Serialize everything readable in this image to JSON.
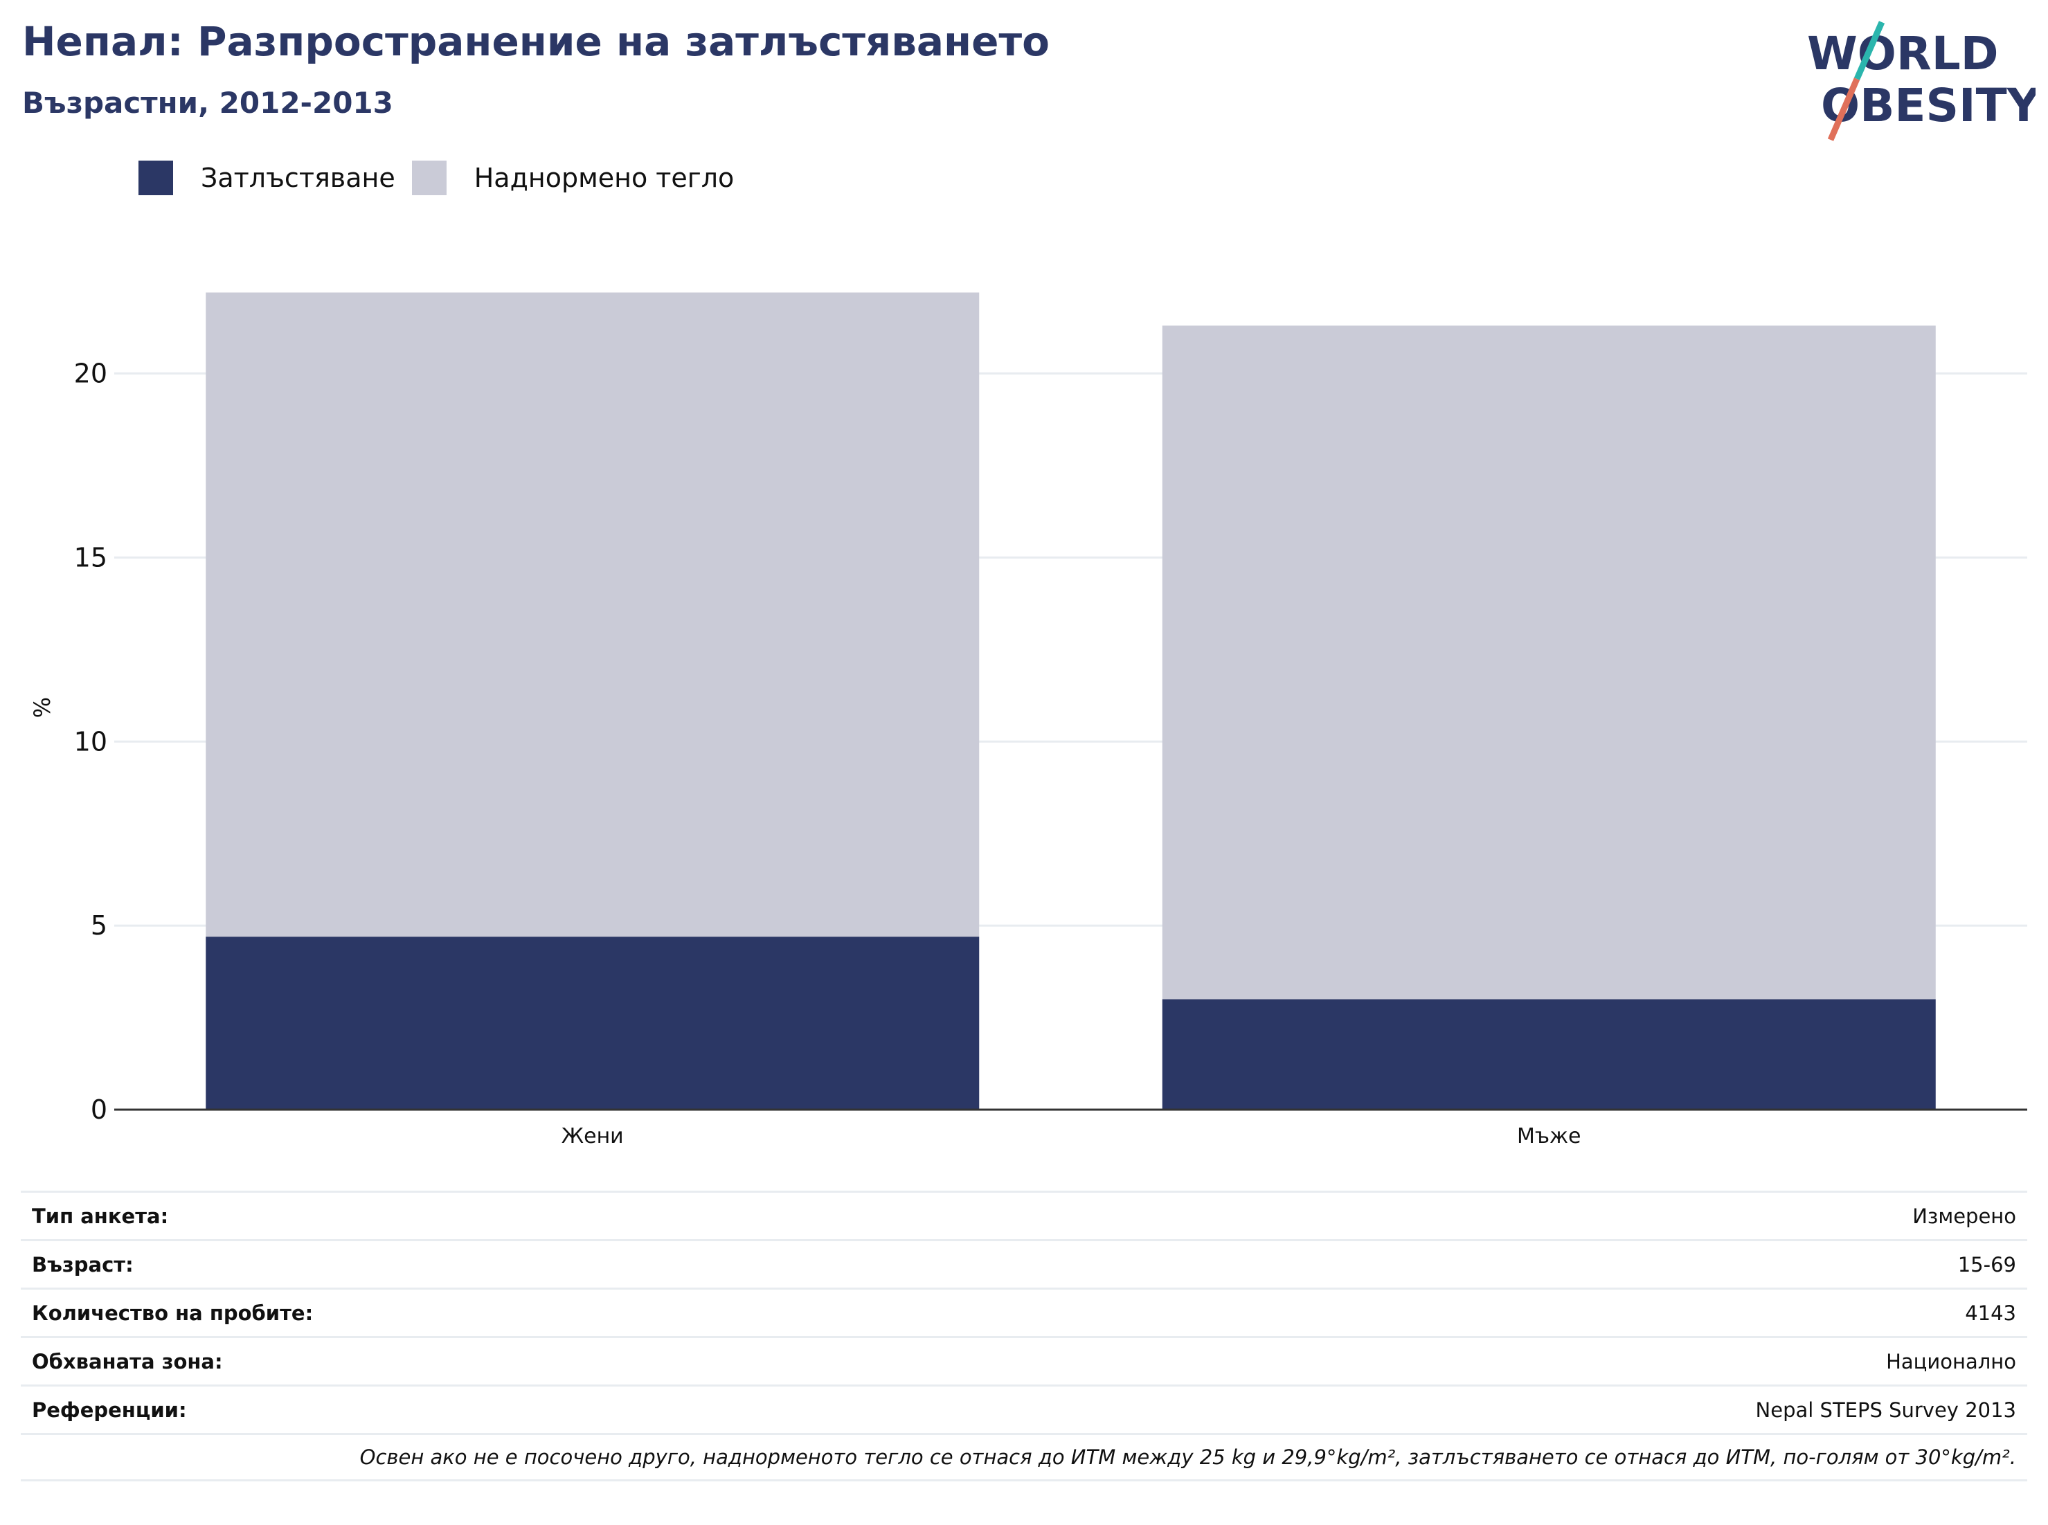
{
  "header": {
    "title": "Непал: Разпространение на затлъстяването",
    "subtitle": "Възрастни, 2012-2013"
  },
  "logo": {
    "line1": "WORLD",
    "line2": "OBESITY",
    "colors": {
      "text": "#2b3765",
      "slash_top": "#2bb5ad",
      "slash_bottom": "#e0705a"
    }
  },
  "legend": [
    {
      "label": "Затлъстяване",
      "color": "#2b3765"
    },
    {
      "label": "Наднормено тегло",
      "color": "#cacbd7"
    }
  ],
  "chart_data": {
    "type": "bar",
    "stacked": true,
    "categories": [
      "Жени",
      "Мъже"
    ],
    "series": [
      {
        "name": "Затлъстяване",
        "values": [
          4.7,
          3.0
        ],
        "color": "#2b3765"
      },
      {
        "name": "Наднормено тегло",
        "values": [
          17.5,
          18.3
        ],
        "color": "#cacbd7"
      }
    ],
    "ylabel": "%",
    "ylim": [
      0,
      23
    ],
    "yticks": [
      0,
      5,
      10,
      15,
      20
    ],
    "grid": true,
    "legend_position": "top-left"
  },
  "info_table": [
    {
      "key": "Тип анкета:",
      "value": "Измерено"
    },
    {
      "key": "Възраст:",
      "value": "15-69"
    },
    {
      "key": "Количество на пробите:",
      "value": "4143"
    },
    {
      "key": "Обхваната зона:",
      "value": "Национално"
    },
    {
      "key": "Референции:",
      "value": "Nepal STEPS Survey 2013"
    }
  ],
  "footnote": "Освен ако не е посочено друго, наднорменото тегло се отнася до ИТМ между 25 kg и 29,9°kg/m², затлъстяването се отнася до ИТМ, по-голям от 30°kg/m²."
}
